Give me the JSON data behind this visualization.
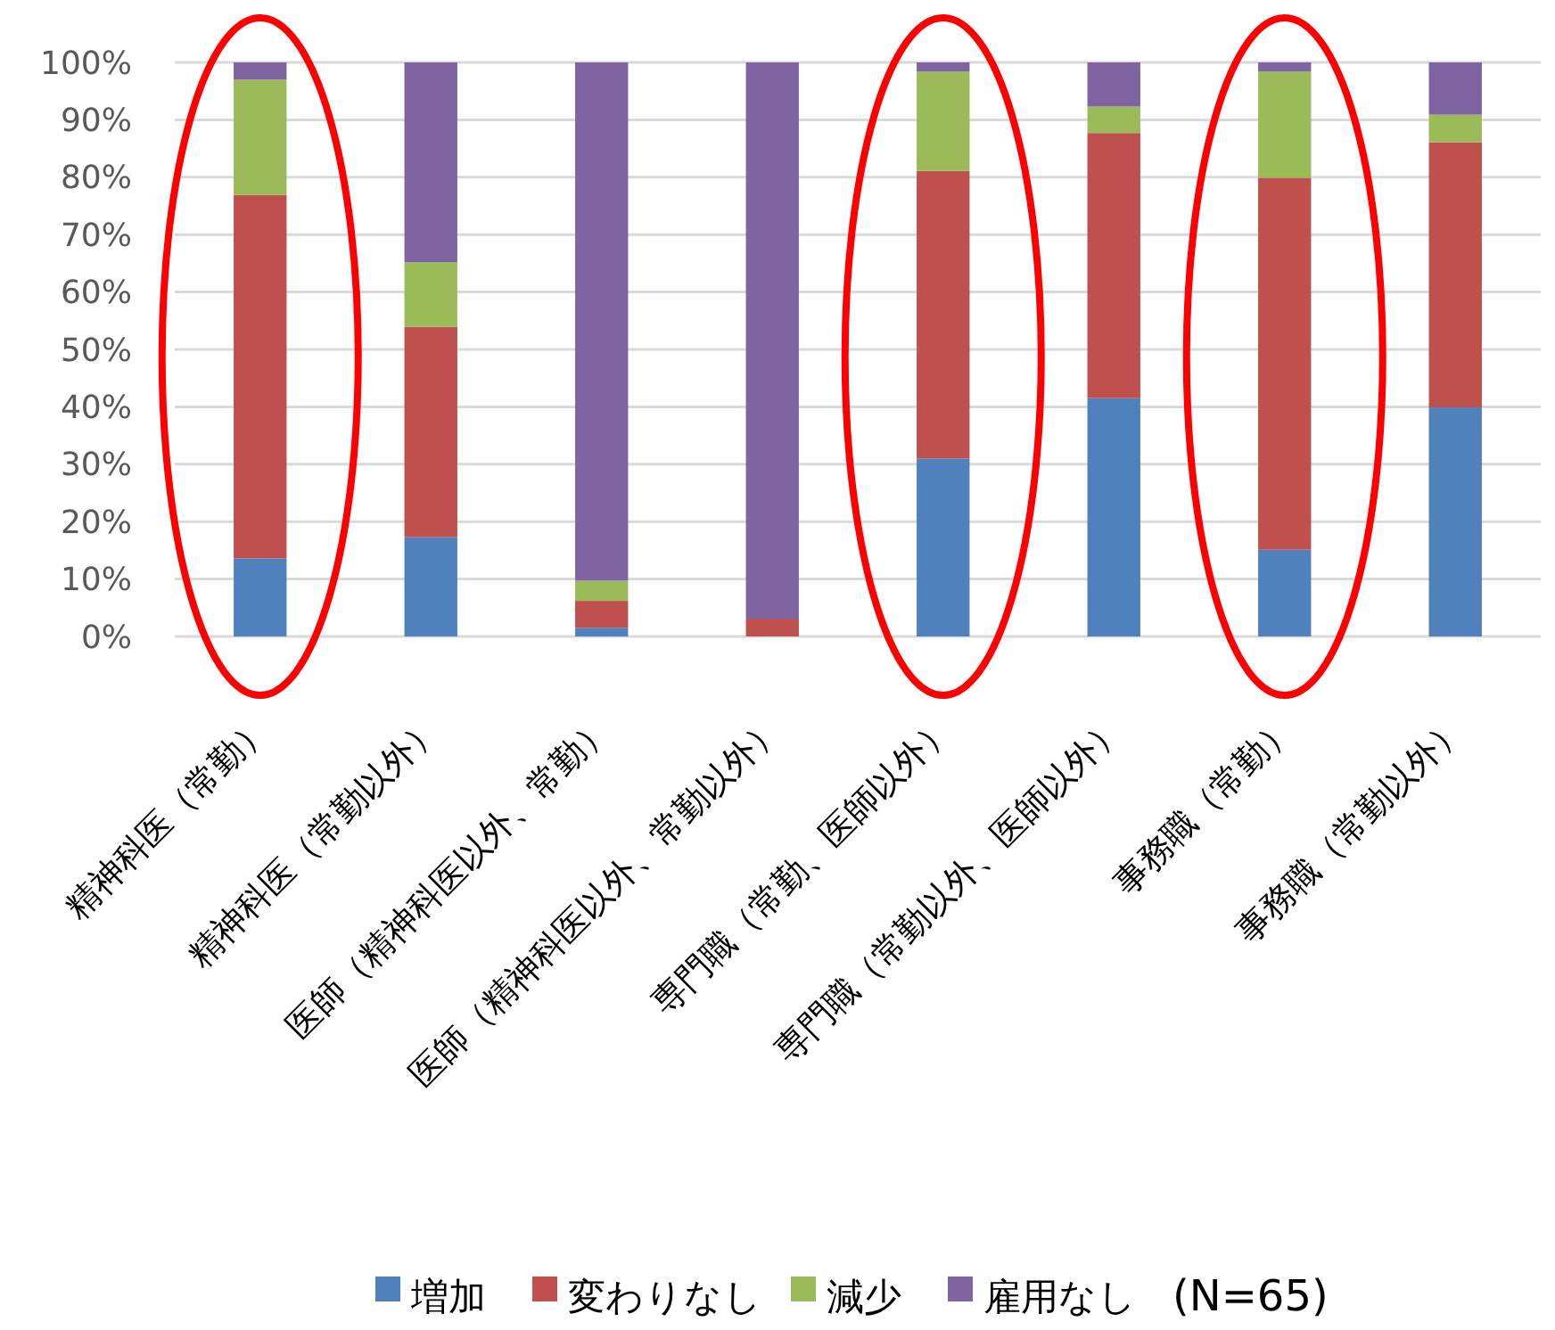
{
  "chart_data": {
    "type": "bar",
    "stacked": true,
    "categories": [
      "精神科医（常勤）",
      "精神科医（常勤以外）",
      "医師（精神科医以外、常勤）",
      "医師（精神科医以外、常勤以外）",
      "専門職（常勤、医師以外）",
      "専門職（常勤以外、医師以外）",
      "事務職（常勤）",
      "事務職（常勤以外）"
    ],
    "series": [
      {
        "name": "増加",
        "color": "#4f81bd",
        "values": [
          13.6,
          17.3,
          1.5,
          0,
          31.0,
          41.5,
          15.1,
          39.9
        ]
      },
      {
        "name": "変わりなし",
        "color": "#c0504d",
        "values": [
          63.3,
          36.6,
          4.7,
          3.1,
          50.1,
          46.2,
          64.8,
          46.2
        ]
      },
      {
        "name": "減少",
        "color": "#9bbb59",
        "values": [
          20.1,
          11.3,
          3.5,
          0,
          17.3,
          4.6,
          18.5,
          4.8
        ]
      },
      {
        "name": "雇用なし",
        "color": "#8064a2",
        "values": [
          3.0,
          34.8,
          90.3,
          96.9,
          1.6,
          7.7,
          1.6,
          9.1
        ]
      }
    ],
    "ylim": [
      0,
      100
    ],
    "yticks": [
      {
        "value": 0,
        "label": "0%"
      },
      {
        "value": 10,
        "label": "10%"
      },
      {
        "value": 20,
        "label": "20%"
      },
      {
        "value": 30,
        "label": "30%"
      },
      {
        "value": 40,
        "label": "40%"
      },
      {
        "value": 50,
        "label": "50%"
      },
      {
        "value": 60,
        "label": "60%"
      },
      {
        "value": 70,
        "label": "70%"
      },
      {
        "value": 80,
        "label": "80%"
      },
      {
        "value": 90,
        "label": "90%"
      },
      {
        "value": 100,
        "label": "100%"
      }
    ],
    "grid": "y",
    "legend": "bottom",
    "annotations": [
      "(N=65)"
    ]
  }
}
